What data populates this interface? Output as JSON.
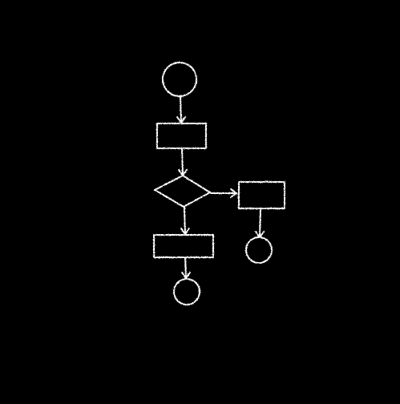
{
  "diagram": {
    "type": "flowchart",
    "style": "hand-drawn chalk",
    "colors": {
      "background": "#000000",
      "stroke": "#ffffff"
    },
    "nodes": [
      {
        "id": "start",
        "shape": "circle",
        "label": ""
      },
      {
        "id": "process-1",
        "shape": "rectangle",
        "label": ""
      },
      {
        "id": "decision",
        "shape": "diamond",
        "label": ""
      },
      {
        "id": "process-right",
        "shape": "rectangle",
        "label": ""
      },
      {
        "id": "end-right",
        "shape": "circle",
        "label": ""
      },
      {
        "id": "process-2",
        "shape": "rectangle",
        "label": ""
      },
      {
        "id": "end-bottom",
        "shape": "circle",
        "label": ""
      }
    ],
    "edges": [
      {
        "from": "start",
        "to": "process-1"
      },
      {
        "from": "process-1",
        "to": "decision"
      },
      {
        "from": "decision",
        "to": "process-right"
      },
      {
        "from": "process-right",
        "to": "end-right"
      },
      {
        "from": "decision",
        "to": "process-2"
      },
      {
        "from": "process-2",
        "to": "end-bottom"
      }
    ]
  }
}
